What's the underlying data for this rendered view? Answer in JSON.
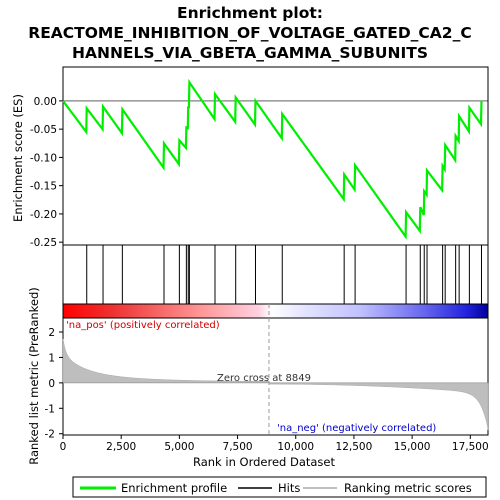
{
  "chart_data": {
    "type": "line",
    "title_lines": [
      "Enrichment plot:",
      "REACTOME_INHIBITION_OF_VOLTAGE_GATED_CA2_C",
      "HANNELS_VIA_GBETA_GAMMA_SUBUNITS"
    ],
    "es_ylabel": "Enrichment score (ES)",
    "rank_ylabel": "Ranked list metric (PreRanked)",
    "xlabel": "Rank in Ordered Dataset",
    "x_ticks": [
      0,
      2500,
      5000,
      7500,
      10000,
      12500,
      15000,
      17500
    ],
    "x_tick_labels": [
      "0",
      "2,500",
      "5,000",
      "7,500",
      "10,000",
      "12,500",
      "15,000",
      "17,500"
    ],
    "xlim": [
      0,
      18260
    ],
    "es_yticks": [
      0.0,
      -0.05,
      -0.1,
      -0.15,
      -0.2,
      -0.25
    ],
    "es_ytick_labels": [
      "0.00",
      "-0.05",
      "-0.10",
      "-0.15",
      "-0.20",
      "-0.25"
    ],
    "es_ylim": [
      -0.255,
      0.06
    ],
    "rank_yticks": [
      2,
      1,
      0,
      -1,
      -2
    ],
    "rank_ytick_labels": [
      "2",
      "1",
      "0",
      "-1",
      "-2"
    ],
    "rank_ylim": [
      -2.05,
      2.55
    ],
    "hits": [
      1020,
      1720,
      2550,
      4340,
      5000,
      5300,
      5380,
      5430,
      6530,
      7420,
      8270,
      9420,
      12080,
      12550,
      14740,
      15350,
      15520,
      15640,
      16310,
      16420,
      16870,
      17020,
      17460,
      17980
    ],
    "es_points": [
      [
        0,
        0.0
      ],
      [
        1000,
        -0.055
      ],
      [
        1020,
        -0.013
      ],
      [
        1700,
        -0.05
      ],
      [
        1720,
        -0.01
      ],
      [
        2530,
        -0.057
      ],
      [
        2550,
        -0.015
      ],
      [
        4320,
        -0.118
      ],
      [
        4340,
        -0.075
      ],
      [
        4980,
        -0.112
      ],
      [
        5000,
        -0.07
      ],
      [
        5280,
        -0.083
      ],
      [
        5300,
        -0.045
      ],
      [
        5360,
        -0.05
      ],
      [
        5380,
        -0.01
      ],
      [
        5410,
        -0.013
      ],
      [
        5430,
        0.033
      ],
      [
        6510,
        -0.032
      ],
      [
        6530,
        0.012
      ],
      [
        7400,
        -0.037
      ],
      [
        7420,
        0.006
      ],
      [
        8250,
        -0.042
      ],
      [
        8270,
        0.0
      ],
      [
        9400,
        -0.066
      ],
      [
        9420,
        -0.023
      ],
      [
        12060,
        -0.174
      ],
      [
        12080,
        -0.13
      ],
      [
        12530,
        -0.157
      ],
      [
        12550,
        -0.114
      ],
      [
        14720,
        -0.24
      ],
      [
        14740,
        -0.197
      ],
      [
        15330,
        -0.23
      ],
      [
        15350,
        -0.188
      ],
      [
        15500,
        -0.202
      ],
      [
        15520,
        -0.16
      ],
      [
        15620,
        -0.166
      ],
      [
        15640,
        -0.123
      ],
      [
        16290,
        -0.158
      ],
      [
        16310,
        -0.115
      ],
      [
        16400,
        -0.121
      ],
      [
        16420,
        -0.078
      ],
      [
        16850,
        -0.105
      ],
      [
        16870,
        -0.062
      ],
      [
        17000,
        -0.071
      ],
      [
        17020,
        -0.027
      ],
      [
        17440,
        -0.054
      ],
      [
        17460,
        -0.012
      ],
      [
        17960,
        -0.041
      ],
      [
        17980,
        0.0
      ]
    ],
    "zero_cross": 8849,
    "zero_cross_label": "Zero cross at 8849",
    "pos_label": "'na_pos' (positively correlated)",
    "neg_label": "'na_neg' (negatively correlated)",
    "legend": [
      {
        "label": "Enrichment profile",
        "color": "#00ee00"
      },
      {
        "label": "Hits",
        "color": "#000000"
      },
      {
        "label": "Ranking metric scores",
        "color": "#c0c0c0"
      }
    ],
    "colors": {
      "profile": "#00ee00",
      "pos_label": "#d00000",
      "neg_label": "#0000cc",
      "metric": "#bebebe"
    }
  }
}
